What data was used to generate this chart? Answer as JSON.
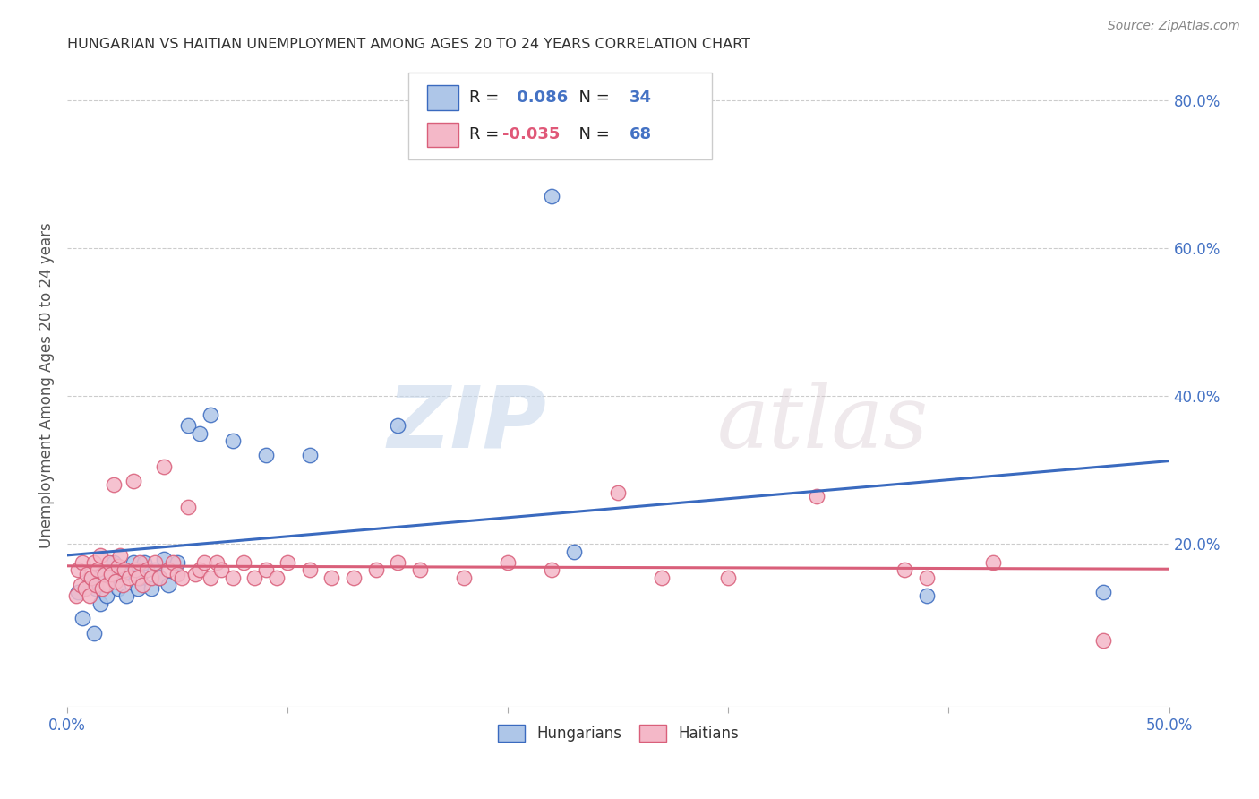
{
  "title": "HUNGARIAN VS HAITIAN UNEMPLOYMENT AMONG AGES 20 TO 24 YEARS CORRELATION CHART",
  "source": "Source: ZipAtlas.com",
  "ylabel": "Unemployment Among Ages 20 to 24 years",
  "xlim": [
    0.0,
    0.5
  ],
  "ylim": [
    -0.02,
    0.85
  ],
  "background_color": "#ffffff",
  "grid_color": "#cccccc",
  "hungarian_color": "#aec6e8",
  "haitian_color": "#f4b8c8",
  "hungarian_line_color": "#3a6abf",
  "haitian_line_color": "#d95f7a",
  "r_hungarian": 0.086,
  "n_hungarian": 34,
  "r_haitian": -0.035,
  "n_haitian": 68,
  "watermark_zip": "ZIP",
  "watermark_atlas": "atlas",
  "right_yticks": [
    0.2,
    0.4,
    0.6,
    0.8
  ],
  "right_yticklabels": [
    "20.0%",
    "40.0%",
    "60.0%",
    "80.0%"
  ],
  "xtick_minor": [
    0.0,
    0.1,
    0.2,
    0.3,
    0.4,
    0.5
  ],
  "hungarian_x": [
    0.005,
    0.007,
    0.01,
    0.012,
    0.013,
    0.015,
    0.016,
    0.018,
    0.02,
    0.021,
    0.023,
    0.025,
    0.027,
    0.03,
    0.032,
    0.033,
    0.035,
    0.038,
    0.04,
    0.042,
    0.044,
    0.046,
    0.05,
    0.055,
    0.06,
    0.065,
    0.075,
    0.09,
    0.11,
    0.15,
    0.22,
    0.23,
    0.39,
    0.47
  ],
  "hungarian_y": [
    0.135,
    0.1,
    0.15,
    0.08,
    0.14,
    0.12,
    0.16,
    0.13,
    0.155,
    0.175,
    0.14,
    0.16,
    0.13,
    0.175,
    0.14,
    0.155,
    0.175,
    0.14,
    0.165,
    0.155,
    0.18,
    0.145,
    0.175,
    0.36,
    0.35,
    0.375,
    0.34,
    0.32,
    0.32,
    0.36,
    0.67,
    0.19,
    0.13,
    0.135
  ],
  "haitian_x": [
    0.004,
    0.005,
    0.006,
    0.007,
    0.008,
    0.009,
    0.01,
    0.011,
    0.012,
    0.013,
    0.014,
    0.015,
    0.016,
    0.017,
    0.018,
    0.019,
    0.02,
    0.021,
    0.022,
    0.023,
    0.024,
    0.025,
    0.026,
    0.028,
    0.03,
    0.031,
    0.032,
    0.033,
    0.034,
    0.036,
    0.038,
    0.04,
    0.042,
    0.044,
    0.046,
    0.048,
    0.05,
    0.052,
    0.055,
    0.058,
    0.06,
    0.062,
    0.065,
    0.068,
    0.07,
    0.075,
    0.08,
    0.085,
    0.09,
    0.095,
    0.1,
    0.11,
    0.12,
    0.13,
    0.14,
    0.15,
    0.16,
    0.18,
    0.2,
    0.22,
    0.25,
    0.27,
    0.3,
    0.34,
    0.38,
    0.39,
    0.42,
    0.47
  ],
  "haitian_y": [
    0.13,
    0.165,
    0.145,
    0.175,
    0.14,
    0.16,
    0.13,
    0.155,
    0.175,
    0.145,
    0.165,
    0.185,
    0.14,
    0.16,
    0.145,
    0.175,
    0.16,
    0.28,
    0.15,
    0.17,
    0.185,
    0.145,
    0.165,
    0.155,
    0.285,
    0.165,
    0.155,
    0.175,
    0.145,
    0.165,
    0.155,
    0.175,
    0.155,
    0.305,
    0.165,
    0.175,
    0.16,
    0.155,
    0.25,
    0.16,
    0.165,
    0.175,
    0.155,
    0.175,
    0.165,
    0.155,
    0.175,
    0.155,
    0.165,
    0.155,
    0.175,
    0.165,
    0.155,
    0.155,
    0.165,
    0.175,
    0.165,
    0.155,
    0.175,
    0.165,
    0.27,
    0.155,
    0.155,
    0.265,
    0.165,
    0.155,
    0.175,
    0.07
  ]
}
